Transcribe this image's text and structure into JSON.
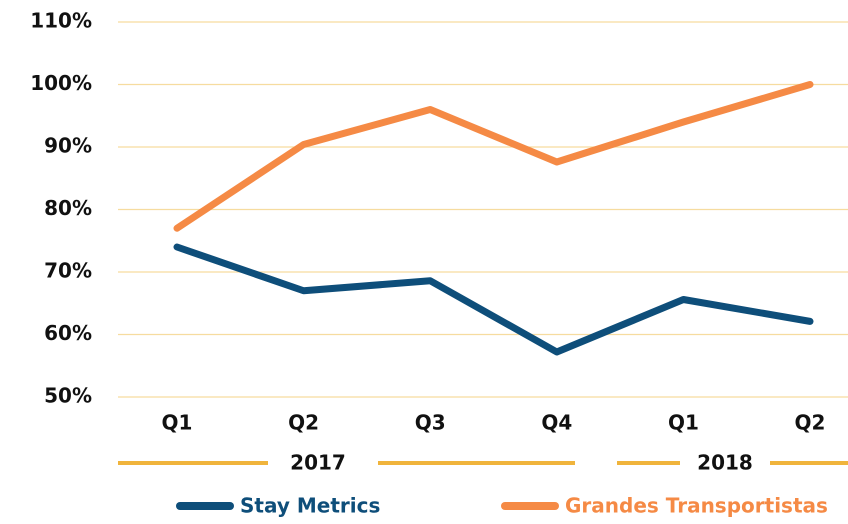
{
  "chart_data": {
    "type": "line",
    "categories": [
      "Q1",
      "Q2",
      "Q3",
      "Q4",
      "Q1",
      "Q2"
    ],
    "groups": [
      "2017",
      "2018"
    ],
    "series": [
      {
        "name": "Stay Metrics",
        "color": "#0e4e7a",
        "values": [
          74,
          67,
          68.6,
          57.2,
          65.6,
          62.1
        ]
      },
      {
        "name": "Grandes Transportistas",
        "color": "#f58a45",
        "values": [
          77,
          90.4,
          96,
          87.6,
          94,
          100
        ]
      }
    ],
    "ylim": [
      50,
      110
    ],
    "yticks": [
      {
        "value": 50,
        "label": "50%"
      },
      {
        "value": 60,
        "label": "60%"
      },
      {
        "value": 70,
        "label": "70%"
      },
      {
        "value": 80,
        "label": "80%"
      },
      {
        "value": 90,
        "label": "90%"
      },
      {
        "value": 100,
        "label": "100%"
      },
      {
        "value": 110,
        "label": "110%"
      }
    ],
    "grid": true
  }
}
